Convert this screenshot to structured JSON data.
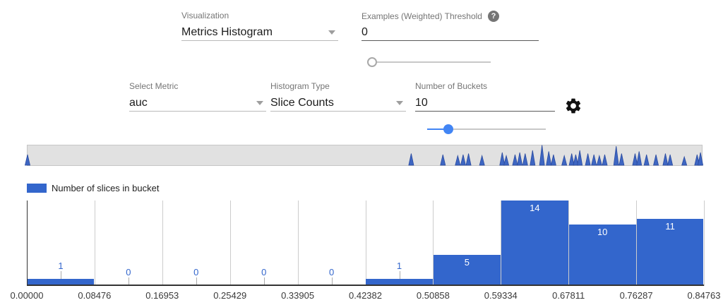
{
  "controls": {
    "visualization": {
      "label": "Visualization",
      "value": "Metrics Histogram"
    },
    "examples_threshold": {
      "label": "Examples (Weighted) Threshold",
      "value": "0",
      "help_icon": "question-mark-icon",
      "slider_percent": 0
    },
    "select_metric": {
      "label": "Select Metric",
      "value": "auc"
    },
    "histogram_type": {
      "label": "Histogram Type",
      "value": "Slice Counts"
    },
    "num_buckets": {
      "label": "Number of Buckets",
      "value": "10",
      "slider_percent": 18
    },
    "settings_icon": "gear-icon"
  },
  "legend": {
    "label": "Number of slices in bucket",
    "swatch_color": "#3366cc"
  },
  "overview_strip": {
    "spike_fill": "#3e66c2",
    "spike_stroke": "#2a4ba0",
    "spikes": [
      [
        0.0,
        0.5
      ],
      [
        0.569,
        0.55
      ],
      [
        0.616,
        0.5
      ],
      [
        0.638,
        0.45
      ],
      [
        0.646,
        0.5
      ],
      [
        0.654,
        0.55
      ],
      [
        0.674,
        0.45
      ],
      [
        0.704,
        0.6
      ],
      [
        0.71,
        0.45
      ],
      [
        0.723,
        0.5
      ],
      [
        0.73,
        0.6
      ],
      [
        0.738,
        0.55
      ],
      [
        0.749,
        0.7
      ],
      [
        0.763,
        0.95
      ],
      [
        0.773,
        0.65
      ],
      [
        0.78,
        0.5
      ],
      [
        0.796,
        0.45
      ],
      [
        0.807,
        0.55
      ],
      [
        0.813,
        0.5
      ],
      [
        0.819,
        0.7
      ],
      [
        0.831,
        0.55
      ],
      [
        0.84,
        0.5
      ],
      [
        0.848,
        0.45
      ],
      [
        0.856,
        0.5
      ],
      [
        0.873,
        0.9
      ],
      [
        0.881,
        0.55
      ],
      [
        0.901,
        0.55
      ],
      [
        0.907,
        0.65
      ],
      [
        0.918,
        0.5
      ],
      [
        0.932,
        0.5
      ],
      [
        0.946,
        0.55
      ],
      [
        0.953,
        0.5
      ],
      [
        0.974,
        0.4
      ],
      [
        0.993,
        0.5
      ],
      [
        0.998,
        0.6
      ]
    ]
  },
  "chart_data": {
    "type": "bar",
    "title": "",
    "series": [
      {
        "name": "Number of slices in bucket",
        "values": [
          1,
          0,
          0,
          0,
          0,
          1,
          5,
          14,
          10,
          11
        ]
      }
    ],
    "values": [
      1,
      0,
      0,
      0,
      0,
      1,
      5,
      14,
      10,
      11
    ],
    "bucket_edges": [
      0.0,
      0.08476,
      0.16953,
      0.25429,
      0.33905,
      0.42382,
      0.50858,
      0.59334,
      0.67811,
      0.76287,
      0.84763
    ],
    "x_tick_labels": [
      "0.00000",
      "0.08476",
      "0.16953",
      "0.25429",
      "0.33905",
      "0.42382",
      "0.50858",
      "0.59334",
      "0.67811",
      "0.76287",
      "0.84763"
    ],
    "xlabel": "",
    "ylabel": "",
    "ylim": [
      0,
      14
    ],
    "grid": true,
    "legend_position": "top-left",
    "bar_color": "#3366cc",
    "label_color_inside": "#ffffff",
    "label_color_outside": "#3366cc"
  },
  "colors": {
    "accent_blue": "#4285f4",
    "bar_blue": "#3366cc",
    "label_gray": "#757575",
    "grid_gray": "#cccccc",
    "axis_dark": "#333333",
    "strip_bg": "#e1e1e1"
  }
}
